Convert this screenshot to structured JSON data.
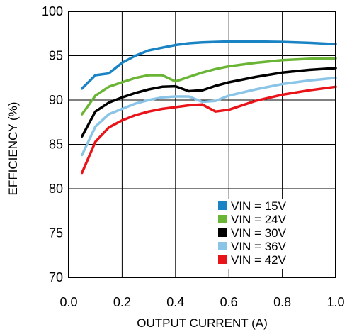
{
  "chart_data": {
    "type": "line",
    "title": "",
    "xlabel": "OUTPUT CURRENT (A)",
    "ylabel": "EFFICIENCY (%)",
    "xlim": [
      0.0,
      1.0
    ],
    "ylim": [
      70,
      100
    ],
    "xticks": [
      0.0,
      0.2,
      0.4,
      0.6,
      0.8,
      1.0
    ],
    "xtick_labels": [
      "0.0",
      "0.2",
      "0.4",
      "0.6",
      "0.8",
      "1.0"
    ],
    "yticks": [
      70,
      75,
      80,
      85,
      90,
      95,
      100
    ],
    "ytick_labels": [
      "70",
      "75",
      "80",
      "85",
      "90",
      "95",
      "100"
    ],
    "grid": true,
    "legend_position": "bottom-right",
    "series": [
      {
        "name": "VIN = 15V",
        "color": "#1a83c4",
        "x": [
          0.05,
          0.1,
          0.15,
          0.2,
          0.25,
          0.3,
          0.35,
          0.4,
          0.45,
          0.5,
          0.55,
          0.6,
          0.7,
          0.8,
          0.9,
          1.0
        ],
        "y": [
          91.3,
          92.8,
          93.0,
          94.2,
          95.0,
          95.6,
          95.9,
          96.2,
          96.4,
          96.5,
          96.55,
          96.6,
          96.6,
          96.55,
          96.45,
          96.3
        ]
      },
      {
        "name": "VIN = 24V",
        "color": "#6ab535",
        "x": [
          0.05,
          0.1,
          0.15,
          0.2,
          0.25,
          0.3,
          0.35,
          0.4,
          0.45,
          0.5,
          0.55,
          0.6,
          0.7,
          0.8,
          0.9,
          1.0
        ],
        "y": [
          88.4,
          90.5,
          91.5,
          92.0,
          92.5,
          92.8,
          92.8,
          92.1,
          92.6,
          93.1,
          93.5,
          93.8,
          94.2,
          94.5,
          94.65,
          94.7
        ]
      },
      {
        "name": "VIN = 30V",
        "color": "#000000",
        "x": [
          0.05,
          0.1,
          0.15,
          0.2,
          0.25,
          0.3,
          0.35,
          0.4,
          0.45,
          0.5,
          0.55,
          0.6,
          0.7,
          0.8,
          0.9,
          1.0
        ],
        "y": [
          85.9,
          88.7,
          89.7,
          90.3,
          90.8,
          91.2,
          91.5,
          91.55,
          91.0,
          91.1,
          91.6,
          92.0,
          92.6,
          93.1,
          93.4,
          93.6
        ]
      },
      {
        "name": "VIN = 36V",
        "color": "#8ac4e6",
        "x": [
          0.05,
          0.1,
          0.15,
          0.2,
          0.25,
          0.3,
          0.35,
          0.4,
          0.45,
          0.5,
          0.55,
          0.6,
          0.7,
          0.8,
          0.9,
          1.0
        ],
        "y": [
          83.8,
          87.0,
          88.4,
          89.0,
          89.6,
          90.0,
          90.3,
          90.4,
          90.4,
          89.8,
          89.9,
          90.5,
          91.2,
          91.8,
          92.2,
          92.5
        ]
      },
      {
        "name": "VIN = 42V",
        "color": "#e8141a",
        "x": [
          0.05,
          0.1,
          0.15,
          0.2,
          0.25,
          0.3,
          0.35,
          0.4,
          0.45,
          0.5,
          0.55,
          0.6,
          0.7,
          0.8,
          0.9,
          1.0
        ],
        "y": [
          81.8,
          85.3,
          86.9,
          87.7,
          88.3,
          88.7,
          89.0,
          89.2,
          89.4,
          89.5,
          88.7,
          88.9,
          89.9,
          90.6,
          91.1,
          91.5
        ]
      }
    ]
  }
}
